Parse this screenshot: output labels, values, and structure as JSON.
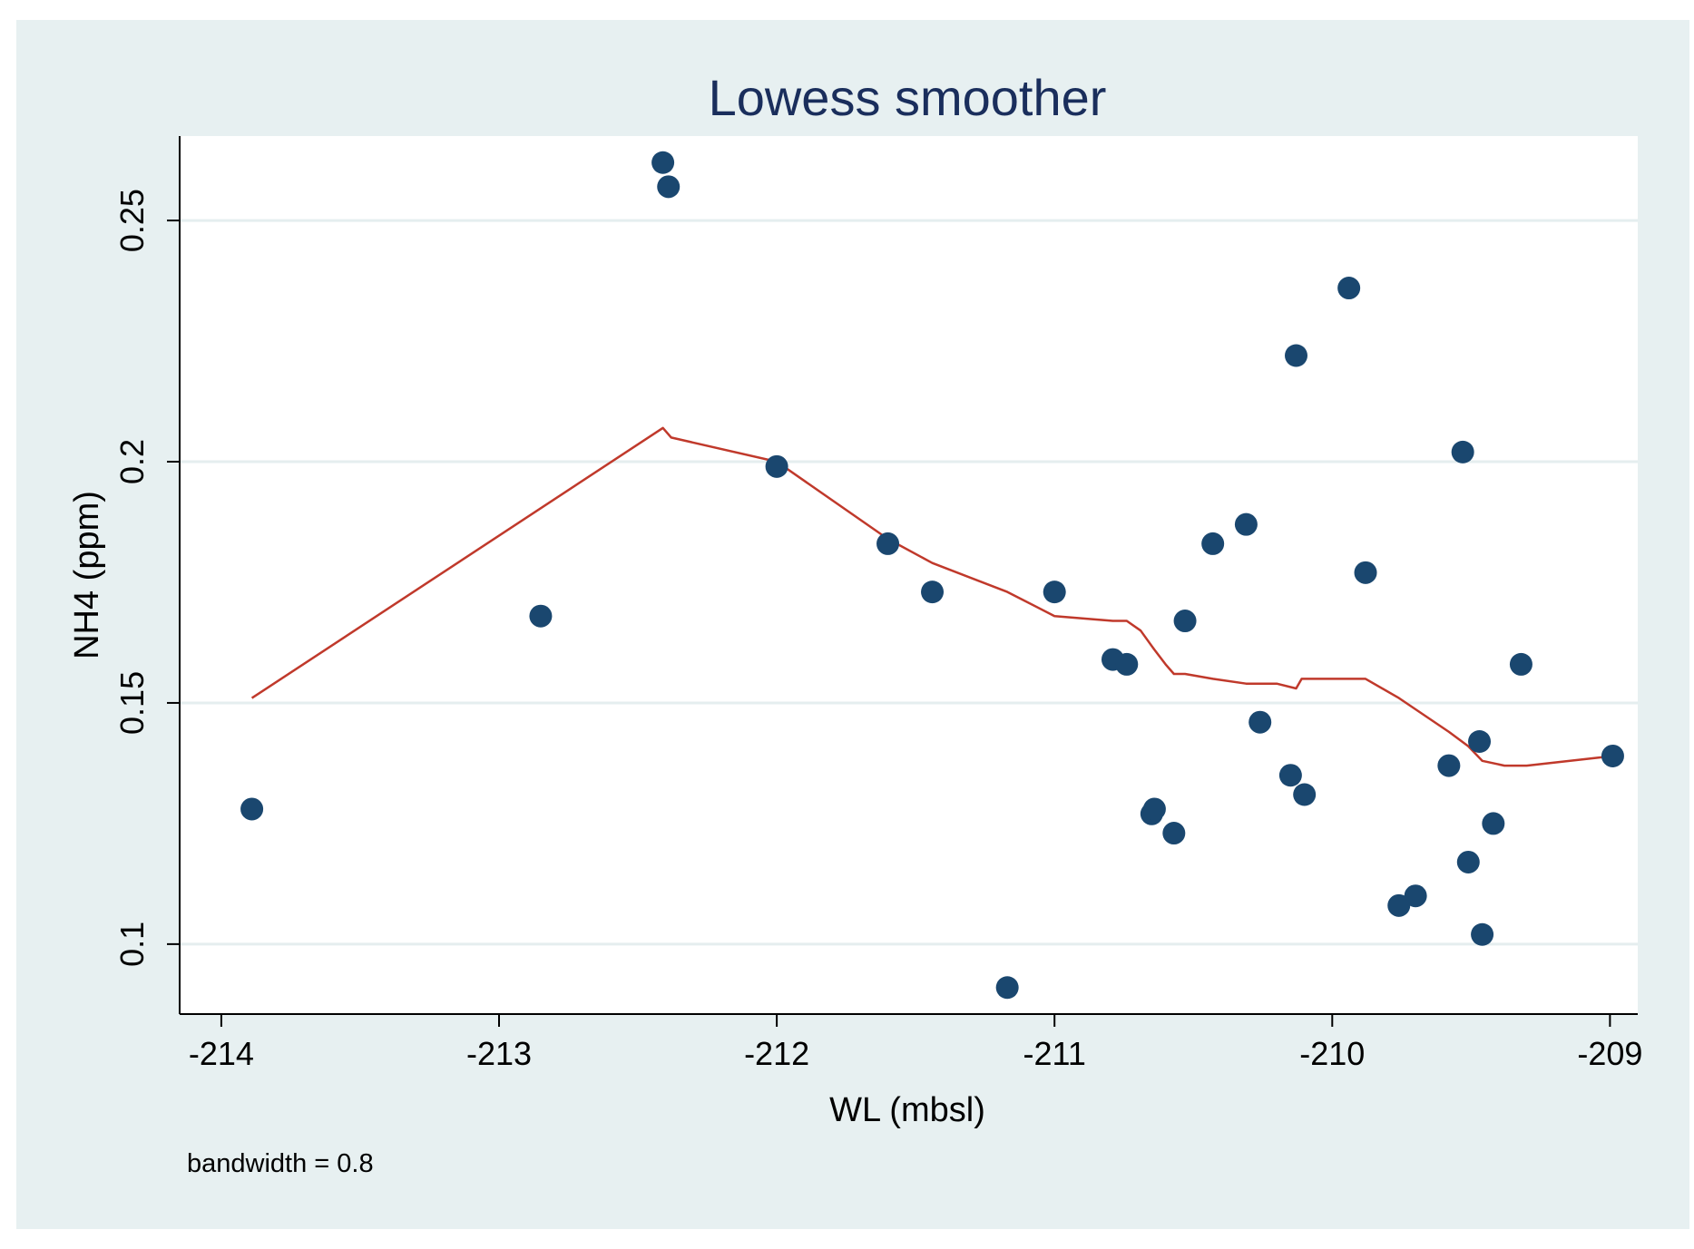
{
  "chart_data": {
    "type": "scatter",
    "title": "Lowess smoother",
    "xlabel": "WL (mbsl)",
    "ylabel": "NH4 (ppm)",
    "note": "bandwidth = 0.8",
    "xlim": [
      -214.15,
      -208.9
    ],
    "ylim": [
      0.0855,
      0.2675
    ],
    "xticks": [
      -214,
      -213,
      -212,
      -211,
      -210,
      -209
    ],
    "xtick_labels": [
      "-214",
      "-213",
      "-212",
      "-211",
      "-210",
      "-209"
    ],
    "yticks": [
      0.1,
      0.15,
      0.2,
      0.25
    ],
    "ytick_labels": [
      "0.1",
      "0.15",
      "0.2",
      "0.25"
    ],
    "grid": true,
    "colors": {
      "outer_background": "#e7f0f1",
      "plot_background": "#ffffff",
      "gridline": "#e5eeef",
      "axis": "#000000",
      "title": "#1a2e5c",
      "points": "#1a476f",
      "lowess_line": "#c0392b"
    },
    "series": [
      {
        "name": "NH4 (ppm)",
        "kind": "scatter",
        "x": [
          -213.89,
          -212.85,
          -212.41,
          -212.39,
          -212.0,
          -211.6,
          -211.44,
          -211.17,
          -211.0,
          -210.79,
          -210.74,
          -210.65,
          -210.64,
          -210.57,
          -210.53,
          -210.43,
          -210.31,
          -210.26,
          -210.15,
          -210.13,
          -210.1,
          -209.94,
          -209.88,
          -209.76,
          -209.7,
          -209.58,
          -209.53,
          -209.51,
          -209.47,
          -209.46,
          -209.42,
          -209.32,
          -208.99
        ],
        "y": [
          0.128,
          0.168,
          0.262,
          0.257,
          0.199,
          0.183,
          0.173,
          0.091,
          0.173,
          0.159,
          0.158,
          0.127,
          0.128,
          0.123,
          0.167,
          0.183,
          0.187,
          0.146,
          0.135,
          0.222,
          0.131,
          0.236,
          0.177,
          0.108,
          0.11,
          0.137,
          0.202,
          0.117,
          0.142,
          0.102,
          0.125,
          0.158,
          0.139
        ]
      },
      {
        "name": "lowess",
        "kind": "line",
        "x": [
          -213.89,
          -212.41,
          -212.38,
          -212.0,
          -211.6,
          -211.44,
          -211.17,
          -211.0,
          -210.79,
          -210.74,
          -210.69,
          -210.64,
          -210.6,
          -210.57,
          -210.53,
          -210.43,
          -210.31,
          -210.2,
          -210.13,
          -210.11,
          -210.05,
          -209.96,
          -209.88,
          -209.76,
          -209.58,
          -209.51,
          -209.46,
          -209.38,
          -209.3,
          -208.99
        ],
        "y": [
          0.151,
          0.207,
          0.205,
          0.2,
          0.184,
          0.179,
          0.173,
          0.168,
          0.167,
          0.167,
          0.165,
          0.161,
          0.158,
          0.156,
          0.156,
          0.155,
          0.154,
          0.154,
          0.153,
          0.155,
          0.155,
          0.155,
          0.155,
          0.151,
          0.144,
          0.141,
          0.138,
          0.137,
          0.137,
          0.139
        ]
      }
    ]
  }
}
